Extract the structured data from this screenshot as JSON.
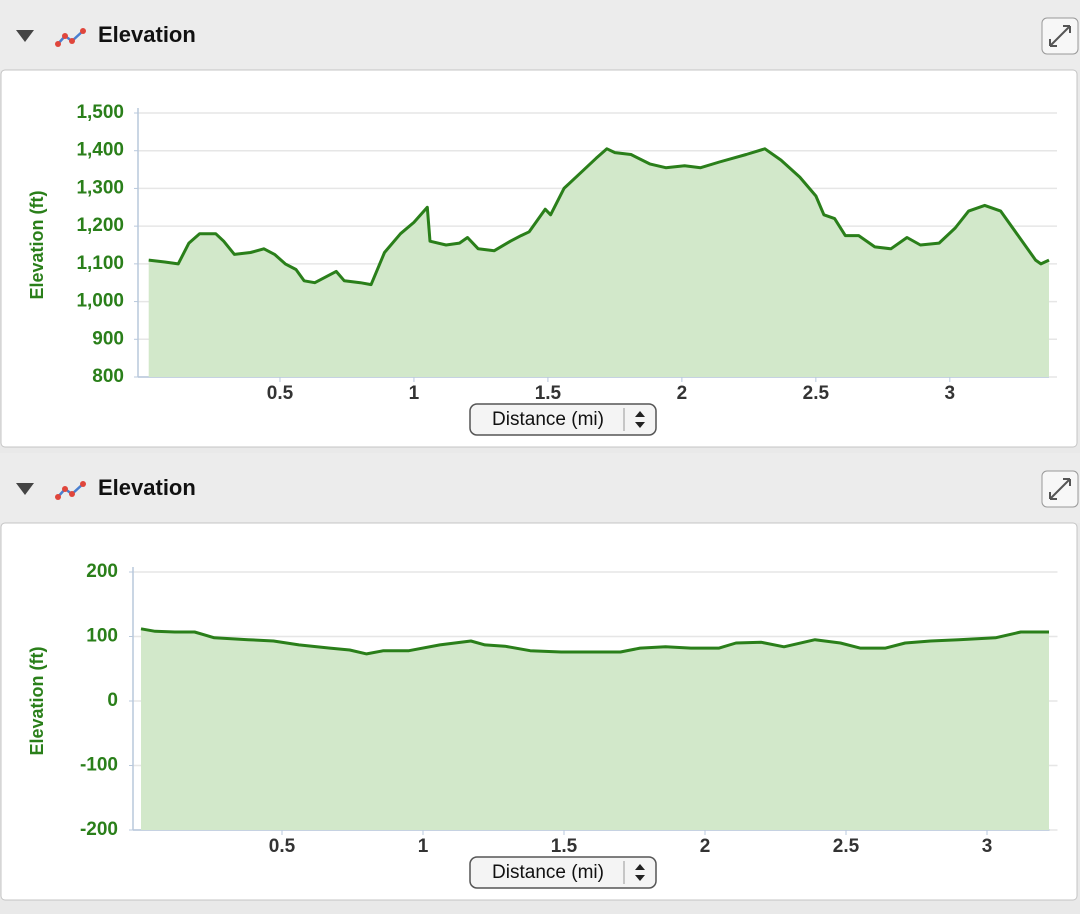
{
  "chart_data": [
    {
      "type": "area",
      "title": "Elevation",
      "ylabel": "Elevation (ft)",
      "xlabel": "Distance (mi)",
      "color": "#2a7f1a",
      "area_color": "#d2e8ca",
      "grid": true,
      "xlim": [
        0,
        3.4
      ],
      "xticks": [
        0.5,
        1,
        1.5,
        2,
        2.5,
        3
      ],
      "ylim": [
        800,
        1500
      ],
      "yticks": [
        800,
        900,
        {
          "value": 1000,
          "label": "1,000"
        },
        {
          "value": 1100,
          "label": "1,100"
        },
        {
          "value": 1200,
          "label": "1,200"
        },
        {
          "value": 1300,
          "label": "1,300"
        },
        {
          "value": 1400,
          "label": "1,400"
        },
        {
          "value": 1500,
          "label": "1,500"
        }
      ],
      "x": [
        0.01,
        0.07,
        0.12,
        0.16,
        0.2,
        0.26,
        0.29,
        0.33,
        0.39,
        0.44,
        0.48,
        0.52,
        0.56,
        0.59,
        0.63,
        0.67,
        0.71,
        0.74,
        0.8,
        0.84,
        0.89,
        0.95,
        1.0,
        1.05,
        1.06,
        1.12,
        1.17,
        1.2,
        1.24,
        1.3,
        1.36,
        1.4,
        1.43,
        1.49,
        1.51,
        1.56,
        1.62,
        1.68,
        1.72,
        1.75,
        1.81,
        1.88,
        1.94,
        2.01,
        2.07,
        2.14,
        2.24,
        2.31,
        2.37,
        2.44,
        2.5,
        2.53,
        2.57,
        2.61,
        2.66,
        2.72,
        2.78,
        2.84,
        2.89,
        2.96,
        3.02,
        3.07,
        3.13,
        3.19,
        3.26,
        3.32,
        3.34,
        3.37
      ],
      "values": [
        1110,
        1105,
        1100,
        1155,
        1180,
        1180,
        1160,
        1125,
        1130,
        1140,
        1125,
        1100,
        1085,
        1055,
        1050,
        1065,
        1080,
        1055,
        1050,
        1045,
        1130,
        1180,
        1210,
        1250,
        1160,
        1150,
        1155,
        1170,
        1140,
        1135,
        1160,
        1175,
        1185,
        1245,
        1230,
        1300,
        1340,
        1380,
        1405,
        1395,
        1390,
        1365,
        1355,
        1360,
        1355,
        1370,
        1390,
        1405,
        1375,
        1330,
        1280,
        1230,
        1220,
        1175,
        1175,
        1145,
        1140,
        1170,
        1150,
        1155,
        1195,
        1240,
        1255,
        1240,
        1170,
        1110,
        1100,
        1110
      ]
    },
    {
      "type": "area",
      "title": "Elevation",
      "ylabel": "Elevation (ft)",
      "xlabel": "Distance (mi)",
      "color": "#2a7f1a",
      "area_color": "#d2e8ca",
      "grid": true,
      "xlim": [
        0,
        3.25
      ],
      "xticks": [
        0.5,
        1,
        1.5,
        2,
        2.5,
        3
      ],
      "ylim": [
        -200,
        200
      ],
      "yticks": [
        -200,
        -100,
        0,
        100,
        200
      ],
      "x": [
        0,
        0.05,
        0.12,
        0.19,
        0.26,
        0.38,
        0.47,
        0.56,
        0.67,
        0.74,
        0.8,
        0.86,
        0.95,
        1.06,
        1.17,
        1.22,
        1.29,
        1.38,
        1.49,
        1.7,
        1.77,
        1.86,
        1.95,
        2.05,
        2.11,
        2.2,
        2.28,
        2.39,
        2.48,
        2.55,
        2.64,
        2.71,
        2.8,
        2.9,
        3.03,
        3.12,
        3.22
      ],
      "values": [
        112,
        108,
        107,
        107,
        98,
        95,
        93,
        87,
        82,
        79,
        73,
        78,
        78,
        87,
        93,
        87,
        85,
        78,
        76,
        76,
        82,
        84,
        82,
        82,
        90,
        91,
        84,
        95,
        90,
        82,
        82,
        90,
        93,
        95,
        98,
        107,
        107
      ]
    }
  ]
}
